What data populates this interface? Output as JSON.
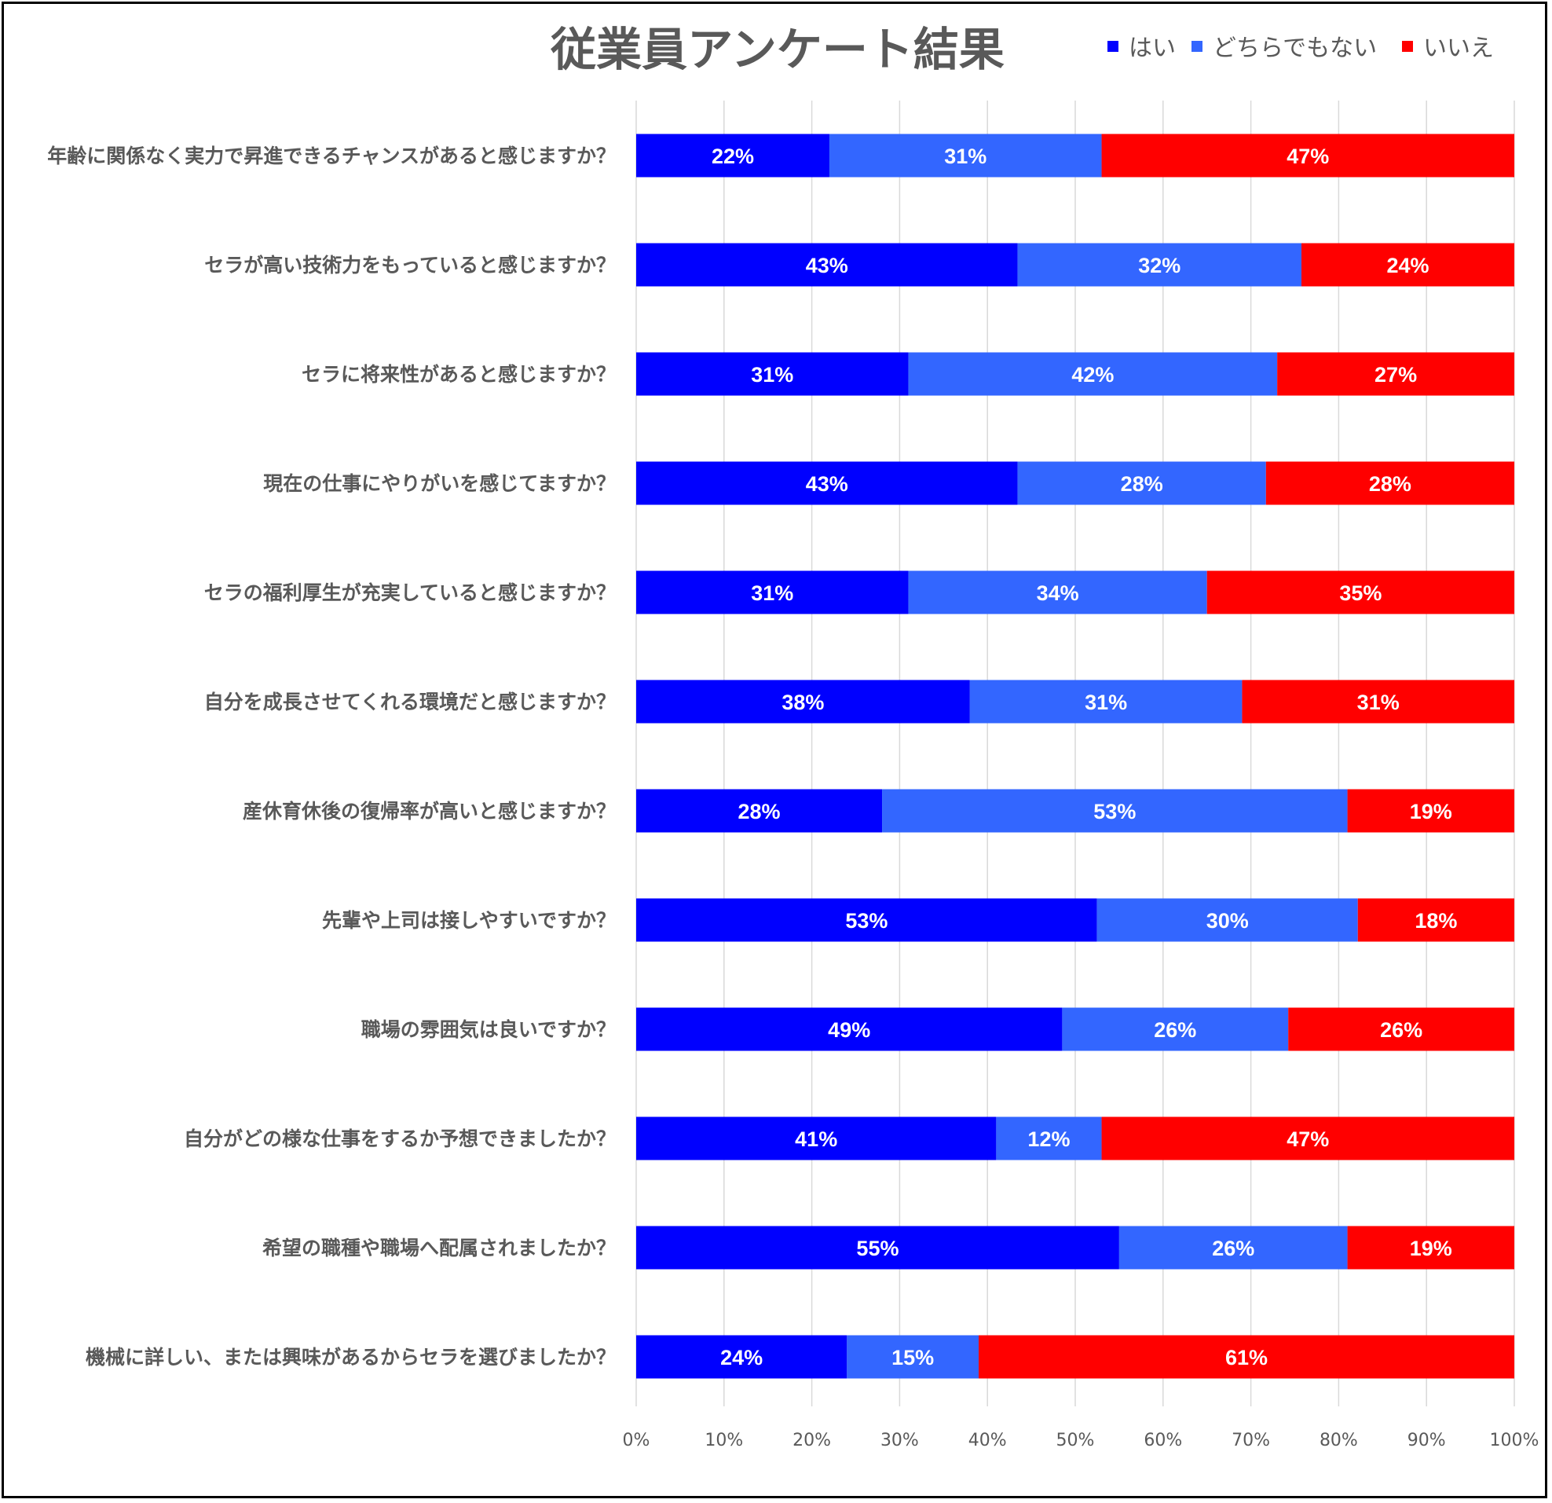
{
  "chart_data": {
    "type": "bar",
    "orientation": "horizontal",
    "stacked": "percent",
    "title": "従業員アンケート結果",
    "legend_position": "top-right",
    "grid": true,
    "xlim": [
      0,
      100
    ],
    "x_ticks": [
      "0%",
      "10%",
      "20%",
      "30%",
      "40%",
      "50%",
      "60%",
      "70%",
      "80%",
      "90%",
      "100%"
    ],
    "categories": [
      "年齢に関係なく実力で昇進できるチャンスがあると感じますか？",
      "セラが高い技術力をもっていると感じますか？",
      "セラに将来性があると感じますか？",
      "現在の仕事にやりがいを感じてますか？",
      "セラの福利厚生が充実していると感じますか？",
      "自分を成長させてくれる環境だと感じますか？",
      "産休育休後の復帰率が高いと感じますか？",
      "先輩や上司は接しやすいですか？",
      "職場の雰囲気は良いですか？",
      "自分がどの様な仕事をするか予想できましたか？",
      "希望の職種や職場へ配属されましたか？",
      "機械に詳しい、または興味があるからセラを選びましたか？"
    ],
    "series": [
      {
        "name": "はい",
        "color": "#0000ff",
        "values": [
          22,
          43,
          31,
          43,
          31,
          38,
          28,
          53,
          49,
          41,
          55,
          24
        ],
        "labels": [
          "22%",
          "43%",
          "31%",
          "43%",
          "31%",
          "38%",
          "28%",
          "53%",
          "49%",
          "41%",
          "55%",
          "24%"
        ]
      },
      {
        "name": "どちらでもない",
        "color": "#3366ff",
        "values": [
          31,
          32,
          42,
          28,
          34,
          31,
          53,
          30,
          26,
          12,
          26,
          15
        ],
        "labels": [
          "31%",
          "32%",
          "42%",
          "28%",
          "34%",
          "31%",
          "53%",
          "30%",
          "26%",
          "12%",
          "26%",
          "15%"
        ]
      },
      {
        "name": "いいえ",
        "color": "#ff0000",
        "values": [
          47,
          24,
          27,
          28,
          35,
          31,
          19,
          18,
          26,
          47,
          19,
          61
        ],
        "labels": [
          "47%",
          "24%",
          "27%",
          "28%",
          "35%",
          "31%",
          "19%",
          "18%",
          "26%",
          "47%",
          "19%",
          "61%"
        ]
      }
    ]
  }
}
